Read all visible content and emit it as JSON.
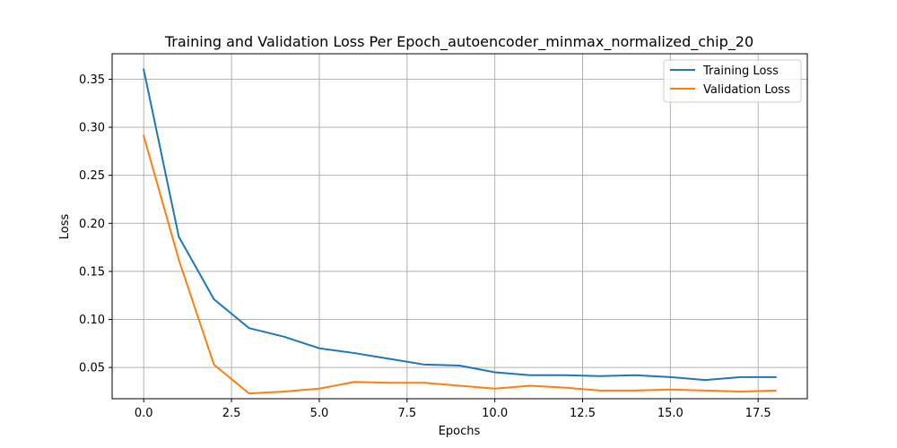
{
  "chart_data": {
    "type": "line",
    "title": "Training and Validation Loss Per Epoch_autoencoder_minmax_normalized_chip_20",
    "xlabel": "Epochs",
    "ylabel": "Loss",
    "xlim": [
      -0.9,
      18.9
    ],
    "ylim": [
      0.0175,
      0.3765
    ],
    "xticks": [
      0.0,
      2.5,
      5.0,
      7.5,
      10.0,
      12.5,
      15.0,
      17.5
    ],
    "xtick_labels": [
      "0.0",
      "2.5",
      "5.0",
      "7.5",
      "10.0",
      "12.5",
      "15.0",
      "17.5"
    ],
    "yticks": [
      0.05,
      0.1,
      0.15,
      0.2,
      0.25,
      0.3,
      0.35
    ],
    "ytick_labels": [
      "0.05",
      "0.10",
      "0.15",
      "0.20",
      "0.25",
      "0.30",
      "0.35"
    ],
    "grid": true,
    "legend_position": "top-right",
    "x": [
      0,
      1,
      2,
      3,
      4,
      5,
      6,
      7,
      8,
      9,
      10,
      11,
      12,
      13,
      14,
      15,
      16,
      17,
      18
    ],
    "series": [
      {
        "name": "Training Loss",
        "color": "#1f77b4",
        "values": [
          0.36,
          0.186,
          0.121,
          0.091,
          0.082,
          0.07,
          0.065,
          0.059,
          0.053,
          0.052,
          0.045,
          0.042,
          0.042,
          0.041,
          0.042,
          0.04,
          0.037,
          0.04,
          0.04
        ]
      },
      {
        "name": "Validation Loss",
        "color": "#ff7f0e",
        "values": [
          0.291,
          0.162,
          0.053,
          0.023,
          0.025,
          0.028,
          0.035,
          0.034,
          0.034,
          0.031,
          0.028,
          0.031,
          0.029,
          0.026,
          0.026,
          0.027,
          0.026,
          0.025,
          0.026
        ]
      }
    ]
  }
}
